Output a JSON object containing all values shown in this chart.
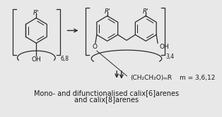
{
  "bg_color": "#e8e8e8",
  "fig_bg": "#e8e8e8",
  "title_text1": "Mono- and difunctionalised calix[6]arenes",
  "title_text2": "and calix[8]arenes",
  "title_fontsize": 7.0,
  "structure_color": "#2a2a2a",
  "text_color": "#1a1a1a",
  "label_m": "m = 3,6,12",
  "label_chain": "(CH₂CH₂O)ₘR",
  "label_OH": "OH",
  "label_O": "O",
  "label_R": "R'",
  "label_68": "6,8",
  "label_34": "3,4"
}
